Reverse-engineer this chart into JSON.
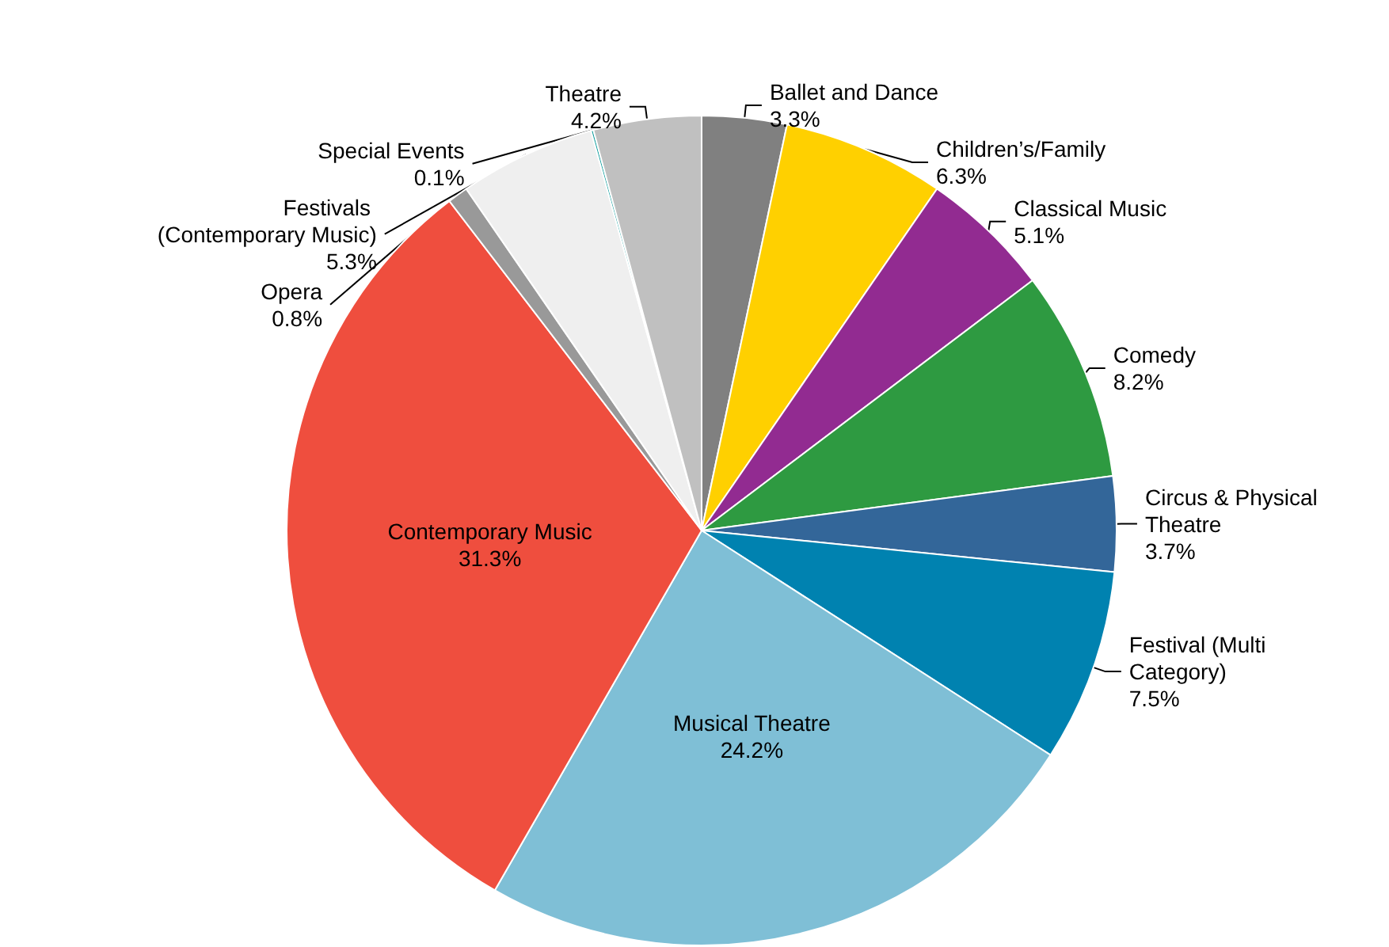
{
  "chart_data": {
    "type": "pie",
    "categories": [
      "Ballet and Dance",
      "Children’s/Family",
      "Classical Music",
      "Comedy",
      "Circus & Physical Theatre",
      "Festival (Multi Category)",
      "Musical Theatre",
      "Contemporary Music",
      "Opera",
      "Festivals (Contemporary Music)",
      "Special Events",
      "Theatre"
    ],
    "values": [
      3.3,
      6.3,
      5.1,
      8.2,
      3.7,
      7.5,
      24.2,
      31.3,
      0.8,
      5.3,
      0.1,
      4.2
    ],
    "colors": [
      "#808080",
      "#ffd000",
      "#922b91",
      "#2e9a41",
      "#336699",
      "#0082b0",
      "#7fbfd6",
      "#ef4e3e",
      "#999999",
      "#efefef",
      "#1ba1a1",
      "#c0c0c0"
    ],
    "value_labels": [
      "3.3%",
      "6.3%",
      "5.1%",
      "8.2%",
      "3.7%",
      "7.5%",
      "24.2%",
      "31.3%",
      "0.8%",
      "5.3%",
      "0.1%",
      "4.2%"
    ],
    "legend": false
  }
}
